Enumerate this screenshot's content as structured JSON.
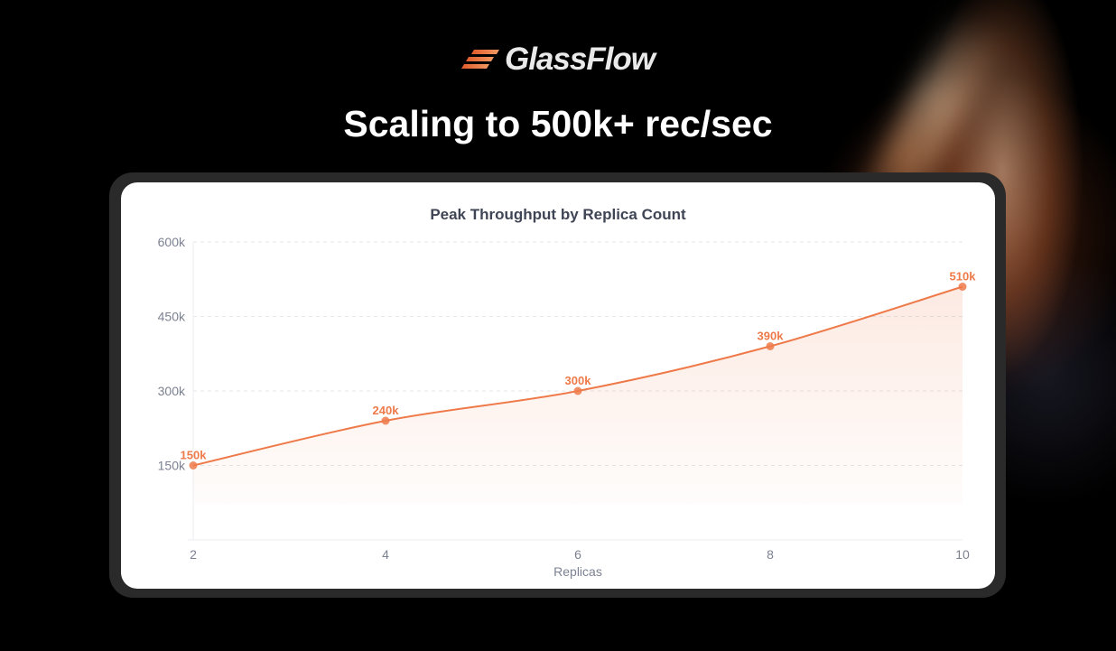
{
  "brand": {
    "name": "GlassFlow",
    "logo_icon": "glassflow-logo-icon"
  },
  "headline": "Scaling to 500k+ rec/sec",
  "colors": {
    "accent": "#ee7a4a",
    "axis_text": "#7b8191",
    "title_text": "#3f4555",
    "grid": "#e4e6ea"
  },
  "chart_data": {
    "type": "line",
    "title": "Peak Throughput by Replica Count",
    "xlabel": "Replicas",
    "ylabel": "",
    "x": [
      2,
      4,
      6,
      8,
      10
    ],
    "series": [
      {
        "values": [
          150000,
          240000,
          300000,
          390000,
          510000
        ],
        "labels": [
          "150k",
          "240k",
          "300k",
          "390k",
          "510k"
        ]
      }
    ],
    "xlim": [
      2,
      10
    ],
    "ylim": [
      0,
      600000
    ],
    "yticks": [
      150000,
      300000,
      450000,
      600000
    ],
    "ytick_labels": [
      "150k",
      "300k",
      "450k",
      "600k"
    ],
    "xticks": [
      2,
      4,
      6,
      8,
      10
    ],
    "xtick_labels": [
      "2",
      "4",
      "6",
      "8",
      "10"
    ],
    "grid": true,
    "area_fill": true,
    "legend": "none"
  }
}
